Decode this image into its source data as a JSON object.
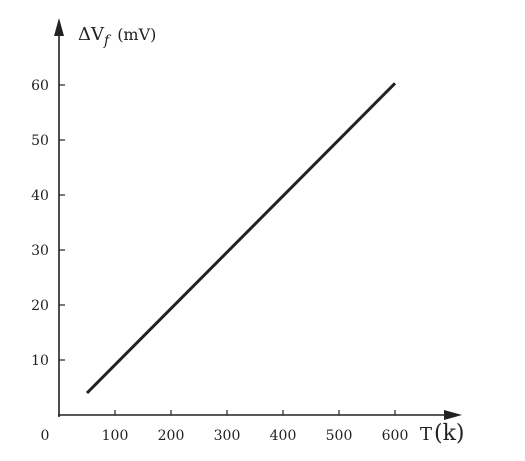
{
  "chart_data": {
    "type": "line",
    "title": "",
    "ylabel": {
      "prefix": "ΔV",
      "subscript": "f",
      "unit": "(mV)"
    },
    "xlabel": {
      "prefix": "T",
      "unit": "(k)"
    },
    "origin_label": "0",
    "xlim": [
      0,
      600
    ],
    "ylim": [
      0,
      60
    ],
    "xticks": [
      100,
      200,
      300,
      400,
      500,
      600
    ],
    "yticks": [
      10,
      20,
      30,
      40,
      50,
      60
    ],
    "series": [
      {
        "x": [
          50,
          600
        ],
        "y": [
          4,
          60.3
        ],
        "color": "#222222"
      }
    ],
    "grid": false,
    "legend": "none"
  }
}
